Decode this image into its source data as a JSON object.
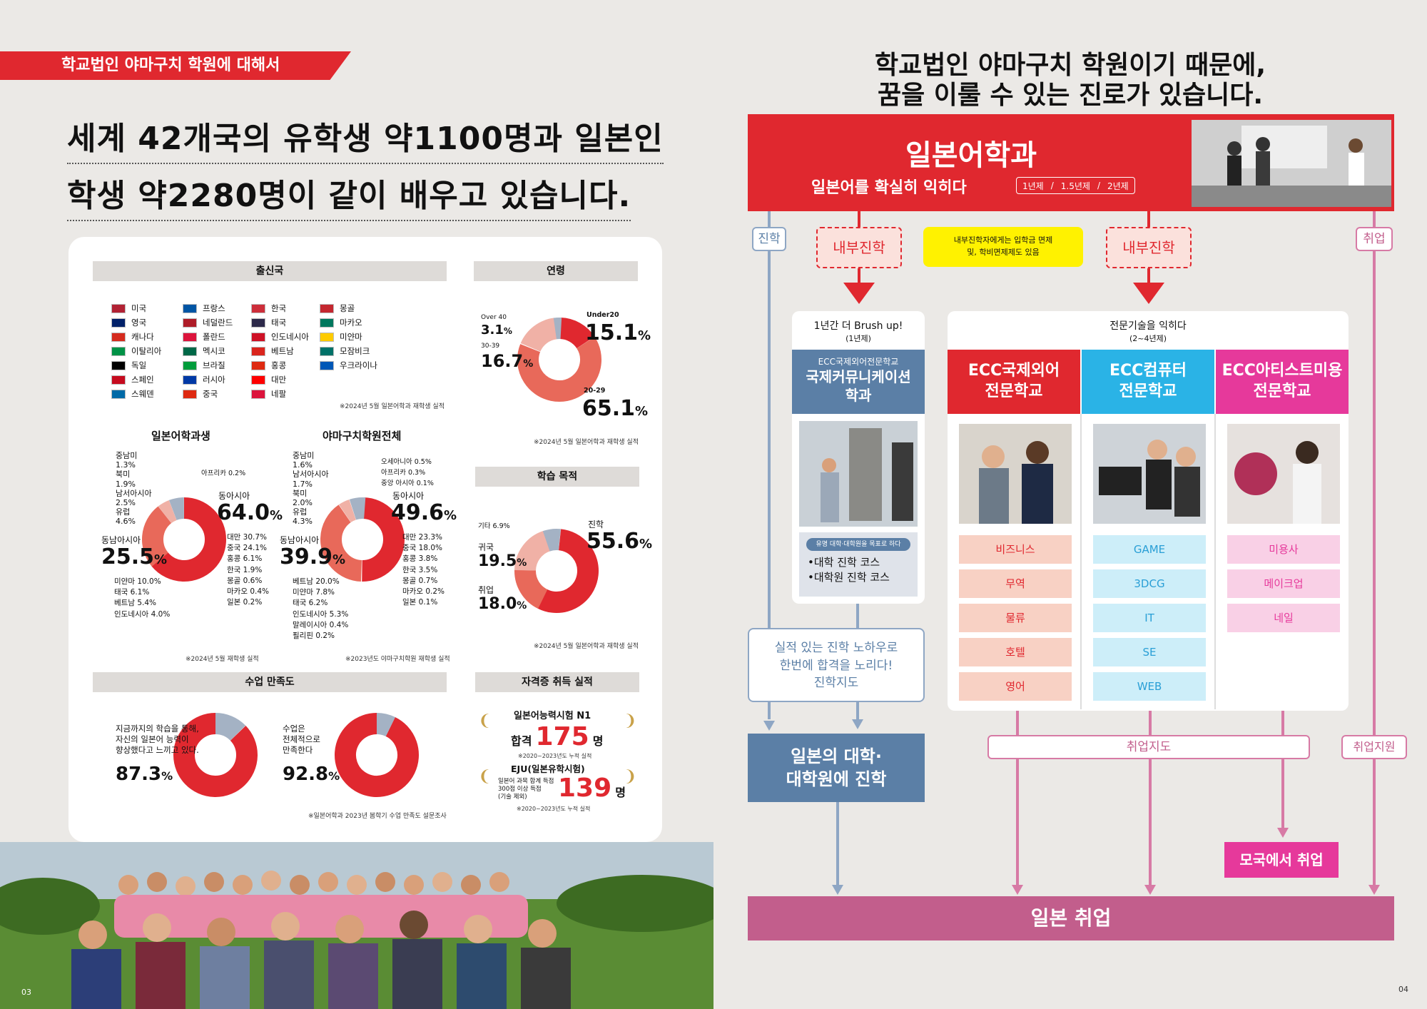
{
  "left": {
    "section_tag": "학교법인 야마구치 학원에 대해서",
    "headline_1": "세계 42개국의 유학생 약1100명과 일본인",
    "headline_2": "학생 약2280명이 같이 배우고 있습니다.",
    "origin": {
      "title": "출신국",
      "columns": [
        [
          "미국",
          "영국",
          "캐나다",
          "이탈리아",
          "독일",
          "스페인",
          "스웨덴"
        ],
        [
          "프랑스",
          "네덜란드",
          "폴란드",
          "멕시코",
          "브라질",
          "러시아",
          "중국"
        ],
        [
          "한국",
          "태국",
          "인도네시아",
          "베트남",
          "홍콩",
          "대만",
          "네팔"
        ],
        [
          "몽골",
          "마카오",
          "미얀마",
          "모잠비크",
          "우크라이나"
        ]
      ],
      "note": "※2024년 5월 일본어학과 재학생 실적"
    },
    "age": {
      "title": "연령",
      "labels": [
        {
          "name": "Over 40",
          "value": "3.1",
          "unit": "%"
        },
        {
          "name": "30-39",
          "value": "16.7",
          "unit": "%"
        },
        {
          "name": "Under20",
          "value": "15.1",
          "unit": "%"
        },
        {
          "name": "20-29",
          "value": "65.1",
          "unit": "%"
        }
      ],
      "note": "※2024년 5월 일본어학과 재학생 실적"
    },
    "jp_dept": {
      "title": "일본어학과생",
      "left_labels": [
        {
          "name": "중남미",
          "value": "1.3%"
        },
        {
          "name": "북미",
          "value": "1.9%"
        },
        {
          "name": "남서아시아",
          "value": "2.5%"
        },
        {
          "name": "유럽",
          "value": "4.6%"
        }
      ],
      "africa": "아프리카 0.2%",
      "east_asia_label": "동아시아",
      "east_asia_value": "64.0",
      "sea_label": "동남아시아",
      "sea_value": "25.5",
      "unit": "%",
      "east_breakdown": [
        "대만 30.7%",
        "중국 24.1%",
        "홍콩 6.1%",
        "한국 1.9%",
        "몽골 0.6%",
        "마카오 0.4%",
        "일본 0.2%"
      ],
      "sea_breakdown": [
        "미얀마 10.0%",
        "태국 6.1%",
        "베트남 5.4%",
        "인도네시아 4.0%"
      ],
      "note": "※2024년 5월 재학생 실적"
    },
    "school_total": {
      "title": "야마구치학원전체",
      "left_labels": [
        {
          "name": "중남미",
          "value": "1.6%"
        },
        {
          "name": "남서아시아",
          "value": "1.7%"
        },
        {
          "name": "북미",
          "value": "2.0%"
        },
        {
          "name": "유럽",
          "value": "4.3%"
        }
      ],
      "right_small": [
        "오세아니아 0.5%",
        "아프리카 0.3%",
        "중앙 아시아 0.1%"
      ],
      "east_asia_label": "동아시아",
      "east_asia_value": "49.6",
      "sea_label": "동남아시아",
      "sea_value": "39.9",
      "unit": "%",
      "east_breakdown": [
        "대만 23.3%",
        "중국 18.0%",
        "홍콩 3.8%",
        "한국 3.5%",
        "몽골 0.7%",
        "마카오 0.2%",
        "일본 0.1%"
      ],
      "sea_breakdown": [
        "베트남 20.0%",
        "미얀마 7.8%",
        "태국 6.2%",
        "인도네시아 5.3%",
        "말레이시아 0.4%",
        "필리핀 0.2%"
      ],
      "note": "※2023년도 야마구치학원 재학생 실적"
    },
    "purpose": {
      "title": "학습 목적",
      "other": "기타 6.9%",
      "return_label": "귀국",
      "return_value": "19.5",
      "job_label": "취업",
      "job_value": "18.0",
      "advance_label": "진학",
      "advance_value": "55.6",
      "unit": "%",
      "note": "※2024년 5월 일본어학과 재학생 실적"
    },
    "satisfaction": {
      "title": "수업 만족도",
      "q1": [
        "지금까지의 학습을 통해,",
        "자신의 일본어 능력이",
        "향상했다고 느끼고 있다."
      ],
      "v1": "87.3",
      "q2": [
        "수업은",
        "전체적으로",
        "만족한다"
      ],
      "v2": "92.8",
      "unit": "%",
      "note": "※일본어학과 2023년 봄학기 수업 만족도 설문조사"
    },
    "certs": {
      "title": "자격증 취득 실적",
      "jlpt_title": "일본어능력시험 N1",
      "jlpt_pre": "합격",
      "jlpt_num": "175",
      "jlpt_unit": "명",
      "jlpt_note": "※2020~2023년도 누적 실적",
      "eju_title": "EJU(일본유학시험)",
      "eju_desc": [
        "일본어 과목 합계 득점",
        "300점 이상 득점",
        "(기술 제외)"
      ],
      "eju_num": "139",
      "eju_unit": "명",
      "eju_note": "※2020~2023년도 누적 실적"
    },
    "page_number": "03"
  },
  "right": {
    "head_1": "학교법인 야마구치 학원이기 때문에,",
    "head_2": "꿈을 이룰 수 있는 진로가 있습니다.",
    "dept_title": "일본어학과",
    "dept_sub": "일본어를 확실히 익히다",
    "durations": [
      "1년제",
      "1.5년제",
      "2년제"
    ],
    "tag_advance": "진학",
    "tag_job": "취업",
    "internal_left": "내부진학",
    "internal_right": "내부진학",
    "yellow_note": [
      "내부진학자에게는 입학금 면제",
      "및, 학비면제제도 있음"
    ],
    "brush": {
      "title": "1년간 더 Brush up!",
      "sub": "(1년제)",
      "school_small": "ECC국제외어전문학교",
      "school_big": [
        "국제커뮤니케이션",
        "학과"
      ],
      "pill": "유명 대학·대학원을 목표로 하다",
      "courses": [
        "•대학 진학 코스",
        "•대학원 진학 코스"
      ]
    },
    "expert": {
      "title": "전문기술을 익히다",
      "sub": "(2~4년제)"
    },
    "schools": [
      {
        "name": [
          "ECC국제외어",
          "전문학교"
        ],
        "color": "#e0282f",
        "courses": [
          "비즈니스",
          "무역",
          "물류",
          "호텔",
          "영어"
        ]
      },
      {
        "name": [
          "ECC컴퓨터",
          "전문학교"
        ],
        "color": "#2ab3e6",
        "courses": [
          "GAME",
          "3DCG",
          "IT",
          "SE",
          "WEB"
        ]
      },
      {
        "name": [
          "ECC아티스트미용",
          "전문학교"
        ],
        "color": "#e6399b",
        "courses": [
          "미용사",
          "메이크업",
          "네일"
        ]
      }
    ],
    "guidance": [
      "실적 있는 진학 노하우로",
      "한번에 합격을 노리다!",
      "진학지도"
    ],
    "univ": [
      "일본의 대학·",
      "대학원에 진학"
    ],
    "job_guidance": "취업지도",
    "job_support": "취업지원",
    "home_job": "모국에서 취업",
    "japan_job": "일본 취업",
    "page_number": "04"
  },
  "colors": {
    "red": "#e0282f",
    "blue": "#5b7fa6",
    "cyan": "#2ab3e6",
    "magenta": "#e6399b",
    "pink": "#c25e8c",
    "donut_light": "#f0b1a6",
    "donut_mid": "#e8695a",
    "donut_grey": "#a4b2c4"
  }
}
